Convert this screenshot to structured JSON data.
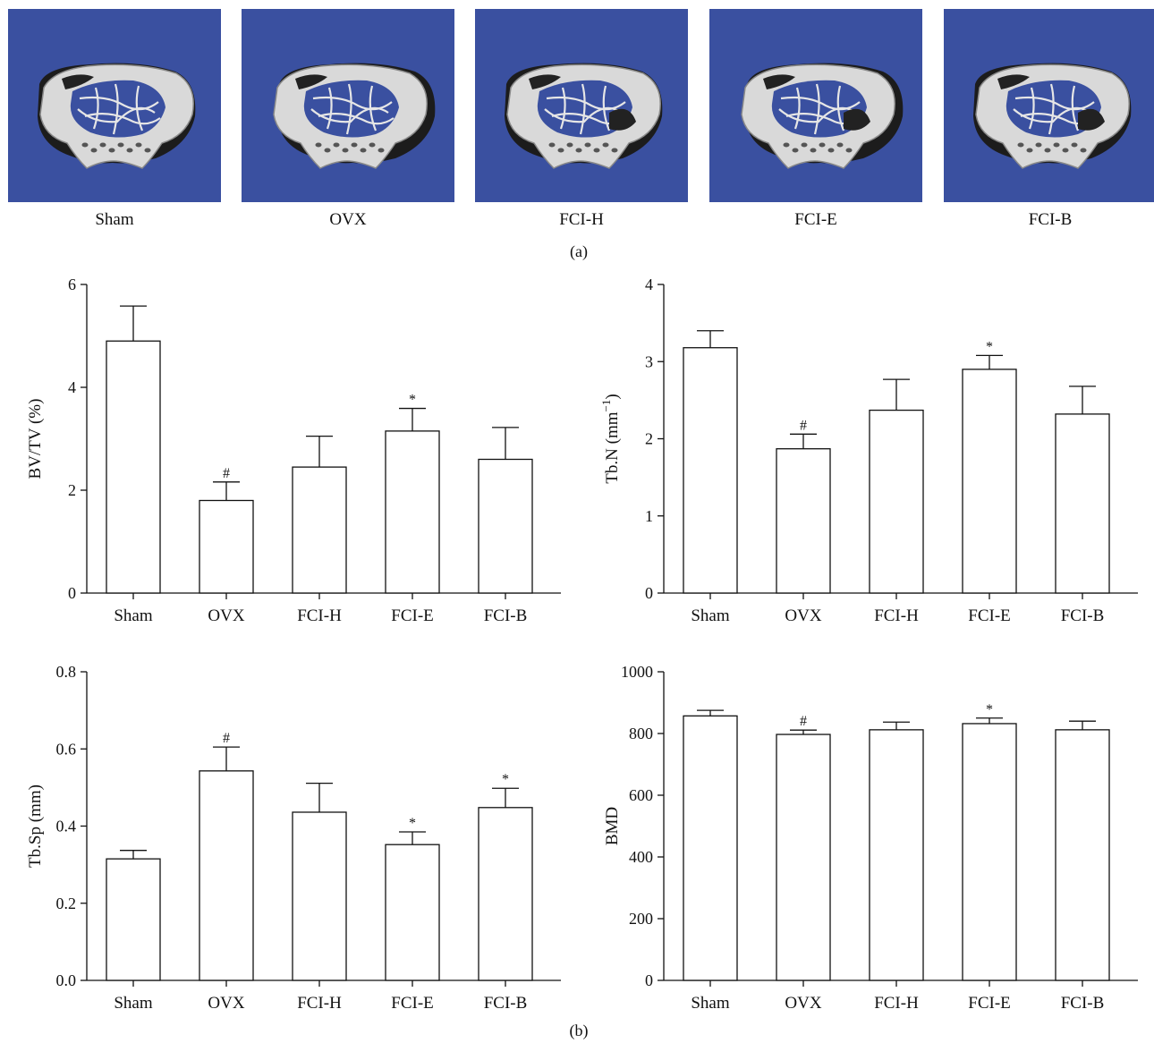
{
  "panel_a": {
    "label": "(a)",
    "images": [
      {
        "label": "Sham"
      },
      {
        "label": "OVX"
      },
      {
        "label": "FCI-H"
      },
      {
        "label": "FCI-E"
      },
      {
        "label": "FCI-B"
      }
    ],
    "background_color": "#3a50a0"
  },
  "panel_b": {
    "label": "(b)"
  },
  "chart_data": [
    {
      "type": "bar",
      "categories": [
        "Sham",
        "OVX",
        "FCI-H",
        "FCI-E",
        "FCI-B"
      ],
      "values": [
        4.9,
        1.8,
        2.45,
        3.15,
        2.6
      ],
      "errors": [
        0.68,
        0.36,
        0.6,
        0.44,
        0.62
      ],
      "markers": [
        "",
        "#",
        "",
        "*",
        ""
      ],
      "ylabel": "BV/TV (%)",
      "ylim": [
        0,
        6
      ],
      "yticks": [
        0,
        2,
        4,
        6
      ],
      "ytick_labels": [
        "0",
        "2",
        "4",
        "6"
      ]
    },
    {
      "type": "bar",
      "categories": [
        "Sham",
        "OVX",
        "FCI-H",
        "FCI-E",
        "FCI-B"
      ],
      "values": [
        3.18,
        1.87,
        2.37,
        2.9,
        2.32
      ],
      "errors": [
        0.22,
        0.19,
        0.4,
        0.18,
        0.36
      ],
      "markers": [
        "",
        "#",
        "",
        "*",
        ""
      ],
      "ylabel": "Tb.N (mm",
      "ylabel_sup": "−1",
      "ylabel_close": ")",
      "ylim": [
        0,
        4
      ],
      "yticks": [
        0,
        1,
        2,
        3,
        4
      ],
      "ytick_labels": [
        "0",
        "1",
        "2",
        "3",
        "4"
      ]
    },
    {
      "type": "bar",
      "categories": [
        "Sham",
        "OVX",
        "FCI-H",
        "FCI-E",
        "FCI-B"
      ],
      "values": [
        0.315,
        0.543,
        0.436,
        0.352,
        0.448
      ],
      "errors": [
        0.022,
        0.062,
        0.075,
        0.033,
        0.05
      ],
      "markers": [
        "",
        "#",
        "",
        "*",
        "*"
      ],
      "ylabel": "Tb.Sp (mm)",
      "ylim": [
        0,
        0.8
      ],
      "yticks": [
        0,
        0.2,
        0.4,
        0.6,
        0.8
      ],
      "ytick_labels": [
        "0.0",
        "0.2",
        "0.4",
        "0.6",
        "0.8"
      ]
    },
    {
      "type": "bar",
      "categories": [
        "Sham",
        "OVX",
        "FCI-H",
        "FCI-E",
        "FCI-B"
      ],
      "values": [
        857,
        797,
        812,
        832,
        812
      ],
      "errors": [
        18,
        14,
        25,
        18,
        28
      ],
      "markers": [
        "",
        "#",
        "",
        "*",
        ""
      ],
      "ylabel": "BMD",
      "ylim": [
        0,
        1000
      ],
      "yticks": [
        0,
        200,
        400,
        600,
        800,
        1000
      ],
      "ytick_labels": [
        "0",
        "200",
        "400",
        "600",
        "800",
        "1000"
      ]
    }
  ]
}
